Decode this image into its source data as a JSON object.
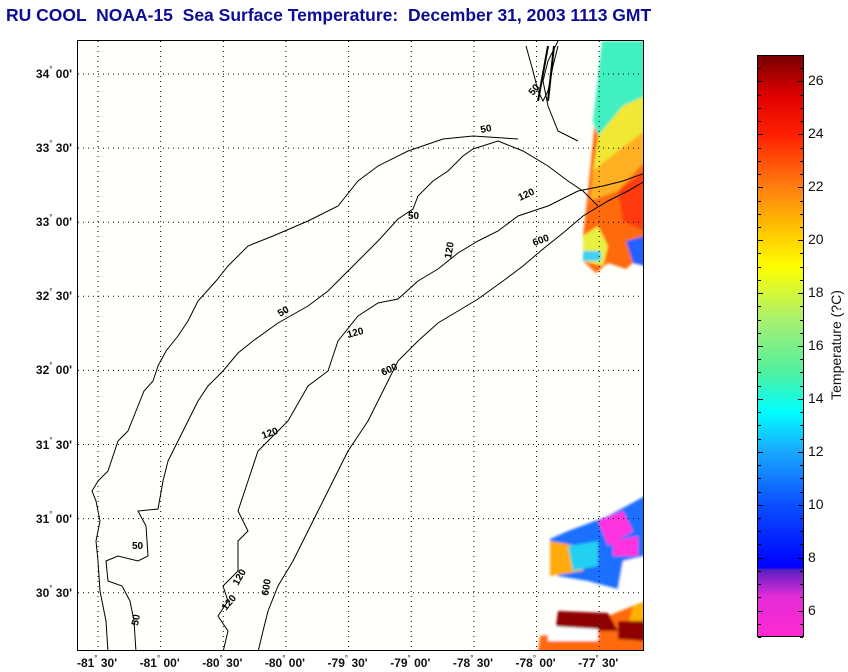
{
  "title": "RU COOL  NOAA-15  Sea Surface Temperature:  December 31, 2003 1113 GMT",
  "map": {
    "product": "Sea Surface Temperature",
    "satellite": "NOAA-15",
    "source": "RU COOL",
    "date": "December 31, 2003",
    "time": "1113 GMT",
    "lat_ticks": [
      {
        "value": 34.0,
        "deg": "34",
        "min": "00'"
      },
      {
        "value": 33.5,
        "deg": "33",
        "min": "30'"
      },
      {
        "value": 33.0,
        "deg": "33",
        "min": "00'"
      },
      {
        "value": 32.5,
        "deg": "32",
        "min": "30'"
      },
      {
        "value": 32.0,
        "deg": "32",
        "min": "00'"
      },
      {
        "value": 31.5,
        "deg": "31",
        "min": "30'"
      },
      {
        "value": 31.0,
        "deg": "31",
        "min": "00'"
      },
      {
        "value": 30.5,
        "deg": "30",
        "min": "30'"
      }
    ],
    "lon_ticks": [
      {
        "value": -81.5,
        "deg": "-81",
        "min": "30'"
      },
      {
        "value": -81.0,
        "deg": "-81",
        "min": "00'"
      },
      {
        "value": -80.5,
        "deg": "-80",
        "min": "30'"
      },
      {
        "value": -80.0,
        "deg": "-80",
        "min": "00'"
      },
      {
        "value": -79.5,
        "deg": "-79",
        "min": "30'"
      },
      {
        "value": -79.0,
        "deg": "-79",
        "min": "00'"
      },
      {
        "value": -78.5,
        "deg": "-78",
        "min": "30'"
      },
      {
        "value": -78.0,
        "deg": "-78",
        "min": "00'"
      },
      {
        "value": -77.5,
        "deg": "-77",
        "min": "30'"
      }
    ],
    "isobath_labels": [
      "50",
      "120",
      "600"
    ],
    "colors": {
      "title": "#0c0c96",
      "coast": "#000000",
      "grid": "#000000",
      "background": "#fffffb"
    }
  },
  "colorbar": {
    "label": "Temperature (?C)",
    "min": 5,
    "max": 27,
    "ticks": [
      "6",
      "8",
      "10",
      "12",
      "14",
      "16",
      "18",
      "20",
      "22",
      "24",
      "26"
    ],
    "stops": [
      {
        "t": 5,
        "color": "#ff2ad2"
      },
      {
        "t": 6.5,
        "color": "#e22bd8"
      },
      {
        "t": 7.5,
        "color": "#5a1fc0"
      },
      {
        "t": 7.6,
        "color": "#0000ff"
      },
      {
        "t": 10,
        "color": "#0a50ff"
      },
      {
        "t": 12,
        "color": "#1aa8ff"
      },
      {
        "t": 13.5,
        "color": "#00ffff"
      },
      {
        "t": 15,
        "color": "#50f0a0"
      },
      {
        "t": 17,
        "color": "#a8f070"
      },
      {
        "t": 19,
        "color": "#ffff00"
      },
      {
        "t": 20.5,
        "color": "#ffc000"
      },
      {
        "t": 22,
        "color": "#ff8010"
      },
      {
        "t": 24,
        "color": "#ff2000"
      },
      {
        "t": 25.5,
        "color": "#e00000"
      },
      {
        "t": 27,
        "color": "#780000"
      }
    ]
  }
}
